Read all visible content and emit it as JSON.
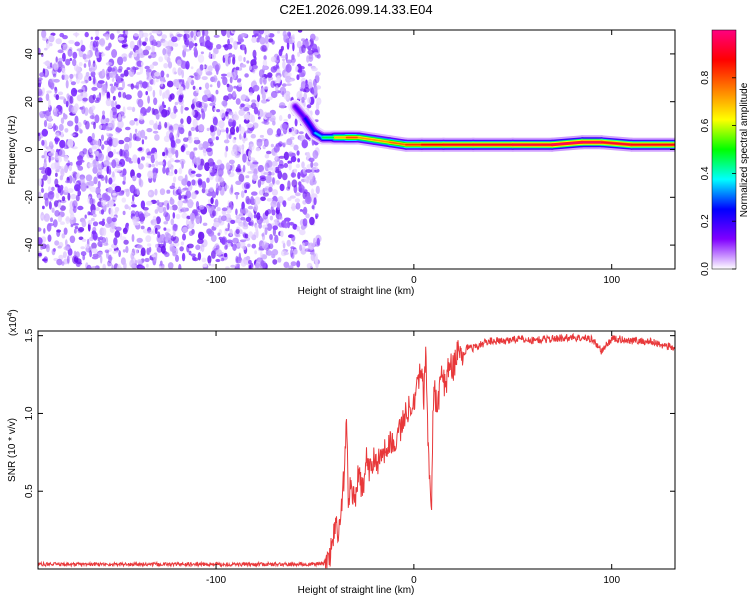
{
  "title": "C2E1.2026.099.14.33.E04",
  "chart_data": [
    {
      "type": "heatmap",
      "xlabel": "Height of straight line (km)",
      "ylabel": "Frequency (Hz)",
      "xlim": [
        -190,
        132
      ],
      "ylim": [
        -50,
        50
      ],
      "x_ticks": [
        -100,
        0,
        100
      ],
      "x_tick_labels": [
        "-100",
        "0",
        "100"
      ],
      "y_ticks": [
        -40,
        -20,
        0,
        20,
        40
      ],
      "y_tick_labels": [
        "-40",
        "-20",
        "0",
        "20",
        "40"
      ],
      "noise_region_x": [
        -190,
        -48
      ],
      "ridge": [
        {
          "x": -60,
          "f": 18,
          "amp": 0.15
        },
        {
          "x": -55,
          "f": 13,
          "amp": 0.2
        },
        {
          "x": -50,
          "f": 7,
          "amp": 0.3
        },
        {
          "x": -46,
          "f": 5,
          "amp": 0.4
        },
        {
          "x": -40,
          "f": 5,
          "amp": 0.55
        },
        {
          "x": -34,
          "f": 5,
          "amp": 0.85
        },
        {
          "x": -28,
          "f": 5,
          "amp": 0.75
        },
        {
          "x": -20,
          "f": 4,
          "amp": 0.7
        },
        {
          "x": -12,
          "f": 3,
          "amp": 0.75
        },
        {
          "x": -4,
          "f": 2,
          "amp": 0.8
        },
        {
          "x": 4,
          "f": 2,
          "amp": 0.85
        },
        {
          "x": 15,
          "f": 2,
          "amp": 0.9
        },
        {
          "x": 30,
          "f": 2,
          "amp": 0.9
        },
        {
          "x": 50,
          "f": 2,
          "amp": 0.92
        },
        {
          "x": 70,
          "f": 2,
          "amp": 0.95
        },
        {
          "x": 85,
          "f": 3,
          "amp": 1.0
        },
        {
          "x": 95,
          "f": 3,
          "amp": 0.95
        },
        {
          "x": 110,
          "f": 2,
          "amp": 0.9
        },
        {
          "x": 132,
          "f": 2,
          "amp": 0.9
        }
      ],
      "colorbar": {
        "label": "Normalized spectral amplitude",
        "range": [
          0,
          1
        ],
        "ticks": [
          0.0,
          0.2,
          0.4,
          0.6,
          0.8
        ],
        "tick_labels": [
          "0.0",
          "0.2",
          "0.4",
          "0.6",
          "0.8"
        ],
        "colors": [
          "#ffffff",
          "#8000ff",
          "#0000ff",
          "#00ffff",
          "#00ff00",
          "#ffff00",
          "#ff8000",
          "#ff0000",
          "#ff0080"
        ]
      }
    },
    {
      "type": "line",
      "xlabel": "Height of straight line (km)",
      "ylabel": "SNR (10 * v/v)",
      "exponent_label": "(x10",
      "exponent_power": "4",
      "exponent_close": ")",
      "xlim": [
        -190,
        132
      ],
      "ylim": [
        0,
        1.53
      ],
      "x_ticks": [
        -100,
        0,
        100
      ],
      "x_tick_labels": [
        "-100",
        "0",
        "100"
      ],
      "y_ticks": [
        0.5,
        1.0,
        1.5
      ],
      "y_tick_labels": [
        "0.5",
        "1.0",
        "1.5"
      ],
      "color": "#e8383a",
      "series": [
        {
          "x": [
            -190,
            -150,
            -100,
            -60,
            -50,
            -44,
            -42,
            -40,
            -38,
            -36,
            -35,
            -34,
            -33,
            -32,
            -30,
            -28,
            -26,
            -24,
            -22,
            -20,
            -18,
            -16,
            -14,
            -12,
            -10,
            -8,
            -6,
            -4,
            -2,
            0,
            2,
            4,
            5,
            6,
            7,
            8,
            9,
            10,
            12,
            14,
            16,
            18,
            20,
            22,
            25,
            28,
            30,
            35,
            40,
            45,
            50,
            60,
            70,
            80,
            90,
            95,
            100,
            110,
            120,
            132
          ],
          "y": [
            0.03,
            0.03,
            0.03,
            0.03,
            0.03,
            0.04,
            0.1,
            0.3,
            0.2,
            0.5,
            0.65,
            0.95,
            0.4,
            0.55,
            0.45,
            0.6,
            0.5,
            0.7,
            0.62,
            0.75,
            0.68,
            0.8,
            0.72,
            0.85,
            0.78,
            0.88,
            0.92,
            1.0,
            1.05,
            1.1,
            1.2,
            1.3,
            1.1,
            1.4,
            0.9,
            0.55,
            0.45,
            1.2,
            1.0,
            1.3,
            1.15,
            1.35,
            1.28,
            1.4,
            1.38,
            1.44,
            1.42,
            1.45,
            1.47,
            1.46,
            1.48,
            1.47,
            1.48,
            1.49,
            1.48,
            1.4,
            1.48,
            1.47,
            1.46,
            1.42
          ]
        }
      ]
    }
  ]
}
